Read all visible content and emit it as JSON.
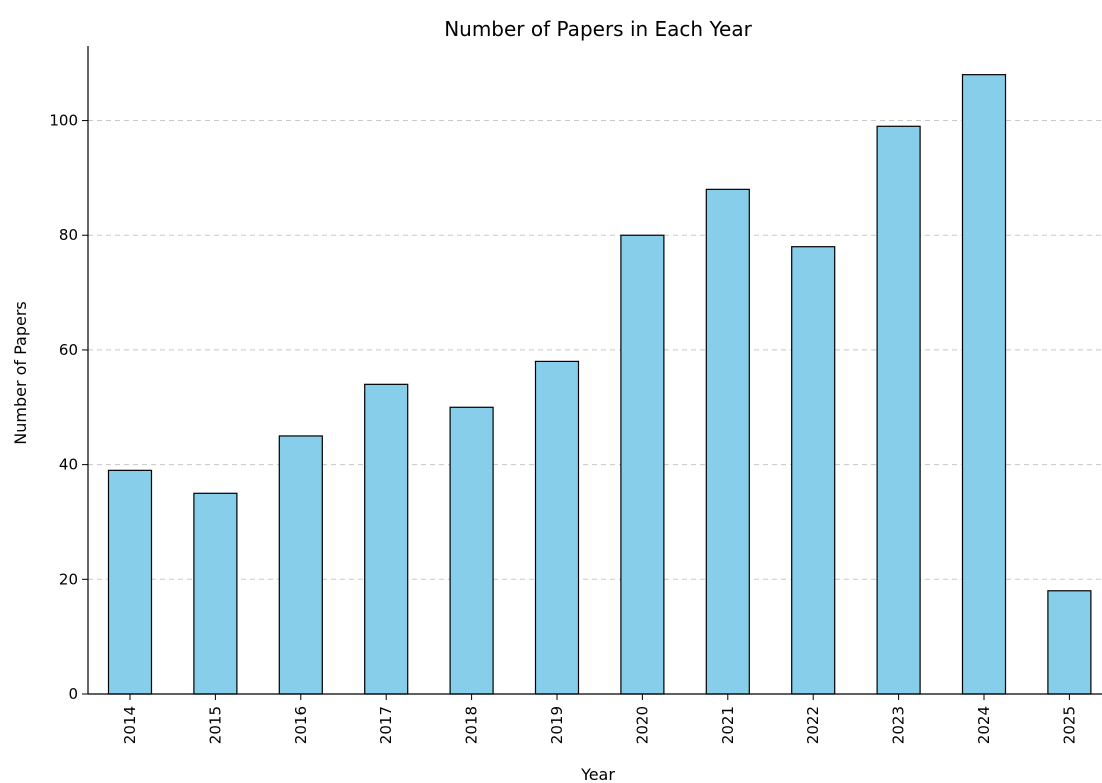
{
  "chart_data": {
    "type": "bar",
    "title": "Number of Papers in Each Year",
    "xlabel": "Year",
    "ylabel": "Number of Papers",
    "categories": [
      "2014",
      "2015",
      "2016",
      "2017",
      "2018",
      "2019",
      "2020",
      "2021",
      "2022",
      "2023",
      "2024",
      "2025"
    ],
    "values": [
      39,
      35,
      45,
      54,
      50,
      58,
      80,
      88,
      78,
      99,
      108,
      18
    ],
    "ylim": [
      0,
      113
    ],
    "yticks": [
      0,
      20,
      40,
      60,
      80,
      100
    ],
    "grid": "y-dashed",
    "bar_color": "#87ceeb",
    "edge_color": "#000000",
    "grid_color": "#c8c8c8"
  }
}
